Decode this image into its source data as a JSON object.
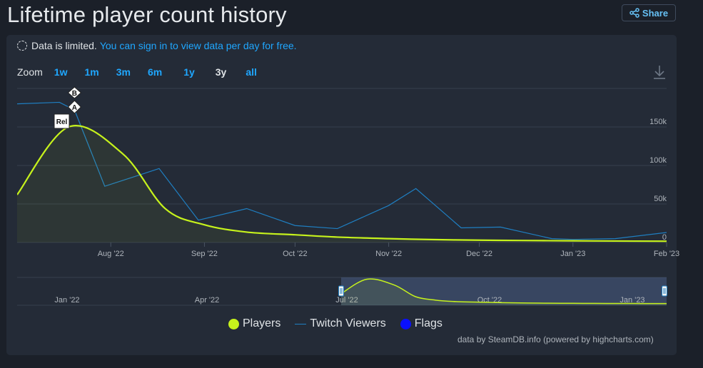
{
  "page": {
    "title": "Lifetime player count history",
    "share_label": "Share"
  },
  "notice": {
    "text": "Data is limited.",
    "link": "You can sign in to view data per day for free."
  },
  "zoom": {
    "label": "Zoom",
    "options": [
      "1w",
      "1m",
      "3m",
      "6m",
      "1y",
      "3y",
      "all"
    ],
    "active": "3y"
  },
  "legend": {
    "players": "Players",
    "twitch": "Twitch Viewers",
    "flags": "Flags"
  },
  "credit": "data by SteamDB.info (powered by highcharts.com)",
  "colors": {
    "players": "#c6f21c",
    "twitch": "#1f7fc2",
    "flags": "#0a10ff",
    "link": "#1fa7ff"
  },
  "chart_data": {
    "type": "line",
    "x_range": [
      "2022-07-01",
      "2023-02-01"
    ],
    "ylim": [
      0,
      190000
    ],
    "y_ticks": [
      0,
      50000,
      100000,
      150000
    ],
    "y_tick_labels": [
      "0",
      "50k",
      "100k",
      "150k"
    ],
    "x_ticks": [
      "2022-08-01",
      "2022-09-01",
      "2022-10-01",
      "2022-11-01",
      "2022-12-01",
      "2023-01-01",
      "2023-02-01"
    ],
    "x_tick_labels": [
      "Aug '22",
      "Sep '22",
      "Oct '22",
      "Nov '22",
      "Dec '22",
      "Jan '23",
      "Feb '23"
    ],
    "grid": true,
    "series": [
      {
        "name": "Players",
        "x": [
          "2022-07-01",
          "2022-07-18",
          "2022-08-05",
          "2022-08-19",
          "2022-09-01",
          "2022-09-15",
          "2022-10-01",
          "2022-10-15",
          "2022-11-01",
          "2022-11-15",
          "2022-12-01",
          "2022-12-15",
          "2023-01-01",
          "2023-01-15",
          "2023-02-01"
        ],
        "values": [
          62000,
          150000,
          115000,
          44000,
          23000,
          13500,
          10000,
          7000,
          5000,
          3800,
          3000,
          2600,
          2200,
          1900,
          1700
        ]
      },
      {
        "name": "Twitch Viewers",
        "x": [
          "2022-07-01",
          "2022-07-15",
          "2022-07-20",
          "2022-07-30",
          "2022-08-10",
          "2022-08-17",
          "2022-08-30",
          "2022-09-15",
          "2022-10-01",
          "2022-10-15",
          "2022-11-01",
          "2022-11-10",
          "2022-11-25",
          "2022-12-08",
          "2022-12-25",
          "2023-01-01",
          "2023-01-15",
          "2023-02-01"
        ],
        "values": [
          180000,
          182000,
          172000,
          73000,
          87000,
          96000,
          29000,
          44000,
          22000,
          18000,
          48000,
          70000,
          19000,
          20000,
          5000,
          4000,
          5000,
          13000
        ]
      }
    ],
    "flags": [
      "Rel",
      "A",
      "B"
    ],
    "navigator": {
      "x_tick_labels": [
        "Jan '22",
        "Apr '22",
        "Jul '22",
        "Oct '22",
        "Jan '23"
      ],
      "range": [
        "Jul '22",
        "Feb '23"
      ]
    }
  }
}
